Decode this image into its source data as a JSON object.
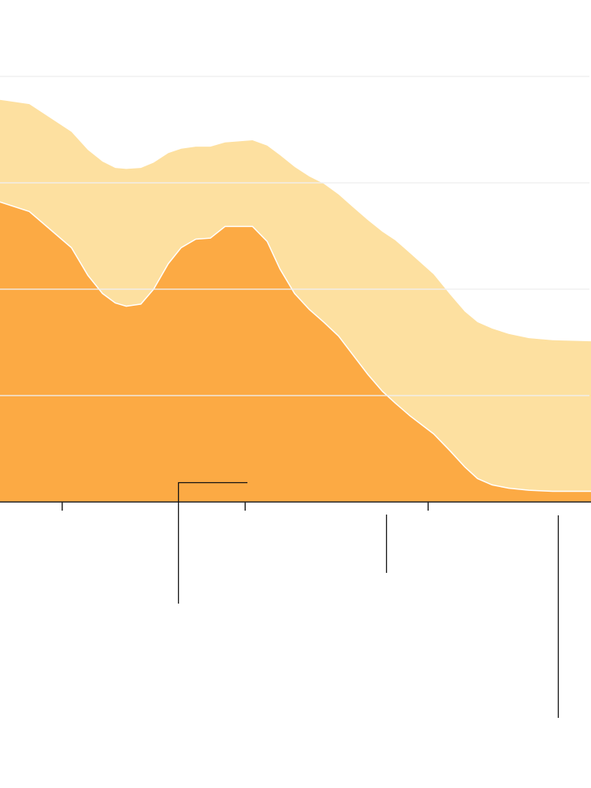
{
  "chart_data": {
    "type": "stacked_area",
    "x": [
      0.66,
      0.82,
      1.05,
      1.14,
      1.22,
      1.29,
      1.35,
      1.43,
      1.5,
      1.58,
      1.65,
      1.73,
      1.81,
      1.89,
      2.04,
      2.12,
      2.19,
      2.27,
      2.35,
      2.43,
      2.51,
      2.59,
      2.67,
      2.75,
      2.82,
      2.9,
      3.03,
      3.12,
      3.2,
      3.27,
      3.35,
      3.44,
      3.55,
      3.68,
      3.89
    ],
    "series": [
      {
        "color": "#fcaa44",
        "values": [
          2.82,
          2.73,
          2.39,
          2.13,
          1.96,
          1.87,
          1.84,
          1.86,
          2.0,
          2.24,
          2.39,
          2.47,
          2.48,
          2.59,
          2.59,
          2.45,
          2.19,
          1.96,
          1.81,
          1.69,
          1.56,
          1.38,
          1.2,
          1.04,
          0.93,
          0.81,
          0.64,
          0.48,
          0.33,
          0.22,
          0.16,
          0.13,
          0.11,
          0.1,
          0.1
        ]
      },
      {
        "color": "#fde0a0",
        "values": [
          0.96,
          1.01,
          1.09,
          1.18,
          1.24,
          1.27,
          1.29,
          1.28,
          1.19,
          1.04,
          0.93,
          0.87,
          0.86,
          0.79,
          0.81,
          0.9,
          1.07,
          1.19,
          1.25,
          1.3,
          1.33,
          1.39,
          1.45,
          1.5,
          1.53,
          1.53,
          1.5,
          1.47,
          1.46,
          1.47,
          1.47,
          1.45,
          1.43,
          1.42,
          1.41
        ]
      }
    ],
    "xlim": [
      0.66,
      3.89
    ],
    "xticks": [
      1,
      2,
      3
    ],
    "ylim": [
      0,
      4
    ],
    "yticks": [
      1,
      2,
      3,
      4
    ],
    "grid": true
  }
}
